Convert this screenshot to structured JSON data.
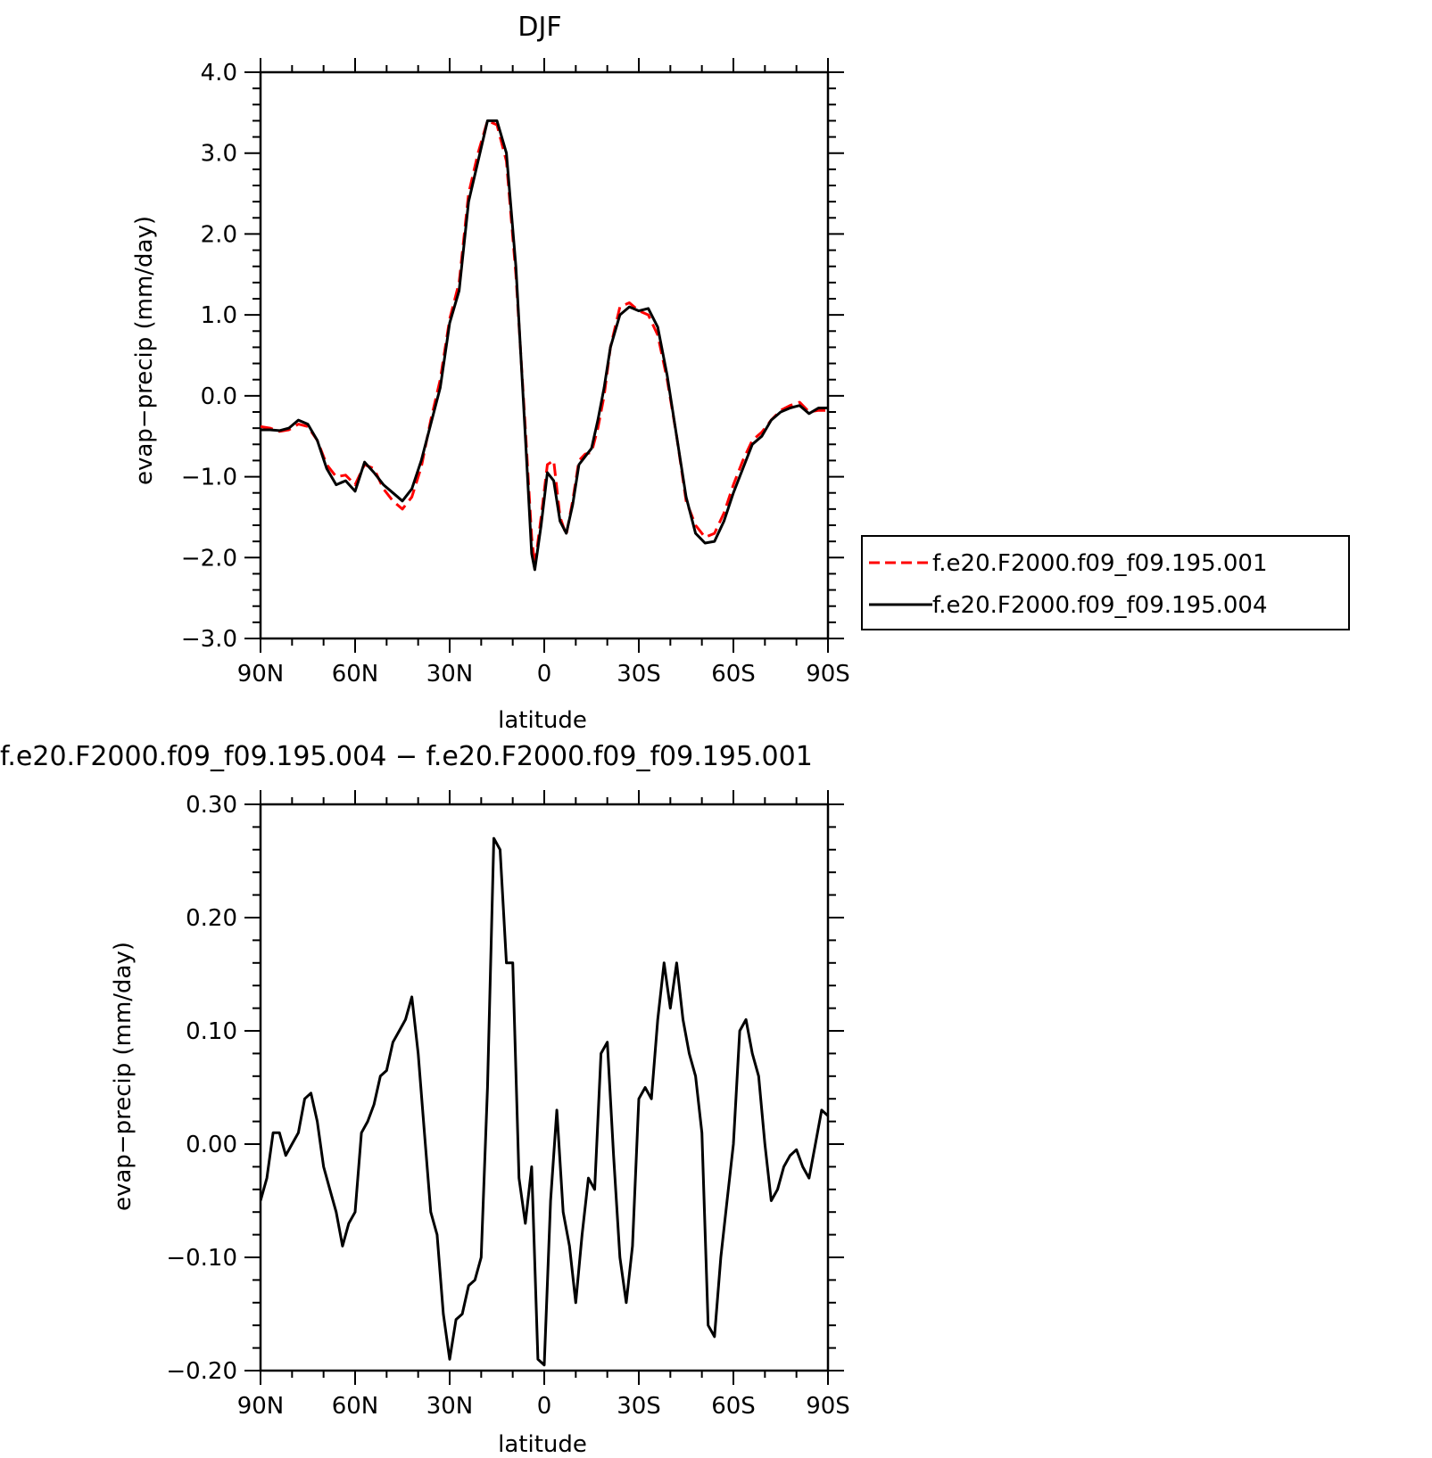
{
  "chart_data": [
    {
      "type": "line",
      "title": "DJF",
      "xlabel": "latitude",
      "ylabel": "evap−precip (mm/day)",
      "xlim": [
        90,
        -90
      ],
      "ylim": [
        -3.0,
        4.0
      ],
      "x_ticks": [
        90,
        60,
        30,
        0,
        -30,
        -60,
        -90
      ],
      "x_tick_labels": [
        "90N",
        "60N",
        "30N",
        "0",
        "30S",
        "60S",
        "90S"
      ],
      "y_ticks": [
        -3,
        -2,
        -1,
        0,
        1,
        2,
        3,
        4
      ],
      "y_tick_labels": [
        "−3.0",
        "−2.0",
        "−1.0",
        "0.0",
        "1.0",
        "2.0",
        "3.0",
        "4.0"
      ],
      "grid": false,
      "legend_position": "outside-right",
      "series": [
        {
          "name": "f.e20.F2000.f09_f09.195.001",
          "color": "#ff0000",
          "style": "dashed",
          "x": [
            90,
            87,
            84,
            81,
            78,
            75,
            72,
            69,
            66,
            63,
            60,
            57,
            54,
            51,
            48,
            45,
            42,
            39,
            36,
            33,
            30,
            27,
            24,
            21,
            18,
            15,
            12,
            9,
            6,
            4,
            3,
            1,
            -1,
            -3,
            -5,
            -7,
            -9,
            -11,
            -13,
            -15,
            -17,
            -19,
            -21,
            -24,
            -27,
            -30,
            -33,
            -36,
            -39,
            -42,
            -45,
            -48,
            -51,
            -54,
            -57,
            -60,
            -63,
            -66,
            -69,
            -72,
            -75,
            -78,
            -81,
            -84,
            -87,
            -90
          ],
          "values": [
            -0.38,
            -0.4,
            -0.44,
            -0.42,
            -0.35,
            -0.38,
            -0.55,
            -0.85,
            -1.0,
            -0.98,
            -1.1,
            -0.85,
            -0.9,
            -1.15,
            -1.3,
            -1.4,
            -1.25,
            -0.88,
            -0.3,
            0.2,
            0.95,
            1.4,
            2.5,
            3.0,
            3.4,
            3.35,
            2.9,
            1.5,
            -0.4,
            -1.75,
            -2.1,
            -1.5,
            -0.85,
            -0.8,
            -1.5,
            -1.72,
            -1.3,
            -0.8,
            -0.72,
            -0.7,
            -0.4,
            0.0,
            0.6,
            1.1,
            1.15,
            1.05,
            1.0,
            0.75,
            0.2,
            -0.5,
            -1.3,
            -1.6,
            -1.75,
            -1.7,
            -1.45,
            -1.1,
            -0.8,
            -0.55,
            -0.45,
            -0.3,
            -0.18,
            -0.12,
            -0.08,
            -0.2,
            -0.18,
            -0.18
          ]
        },
        {
          "name": "f.e20.F2000.f09_f09.195.004",
          "color": "#000000",
          "style": "solid",
          "x": [
            90,
            87,
            84,
            81,
            78,
            75,
            72,
            69,
            66,
            63,
            60,
            57,
            54,
            51,
            48,
            45,
            42,
            39,
            36,
            33,
            30,
            27,
            24,
            21,
            18,
            15,
            12,
            9,
            6,
            4,
            3,
            1,
            -1,
            -3,
            -5,
            -7,
            -9,
            -11,
            -13,
            -15,
            -17,
            -19,
            -21,
            -24,
            -27,
            -30,
            -33,
            -36,
            -39,
            -42,
            -45,
            -48,
            -51,
            -54,
            -57,
            -60,
            -63,
            -66,
            -69,
            -72,
            -75,
            -78,
            -81,
            -84,
            -87,
            -90
          ],
          "values": [
            -0.42,
            -0.42,
            -0.43,
            -0.4,
            -0.3,
            -0.35,
            -0.55,
            -0.9,
            -1.1,
            -1.05,
            -1.18,
            -0.82,
            -0.95,
            -1.1,
            -1.2,
            -1.3,
            -1.15,
            -0.8,
            -0.35,
            0.1,
            0.9,
            1.3,
            2.4,
            2.9,
            3.4,
            3.4,
            3.0,
            1.6,
            -0.5,
            -1.95,
            -2.15,
            -1.6,
            -0.95,
            -1.05,
            -1.55,
            -1.7,
            -1.35,
            -0.85,
            -0.75,
            -0.65,
            -0.3,
            0.1,
            0.6,
            1.0,
            1.1,
            1.05,
            1.08,
            0.85,
            0.25,
            -0.5,
            -1.25,
            -1.7,
            -1.82,
            -1.8,
            -1.55,
            -1.2,
            -0.9,
            -0.6,
            -0.5,
            -0.3,
            -0.2,
            -0.15,
            -0.12,
            -0.22,
            -0.15,
            -0.15
          ]
        }
      ]
    },
    {
      "type": "line",
      "title": "f.e20.F2000.f09_f09.195.004 − f.e20.F2000.f09_f09.195.001",
      "xlabel": "latitude",
      "ylabel": "evap−precip (mm/day)",
      "xlim": [
        90,
        -90
      ],
      "ylim": [
        -0.2,
        0.3
      ],
      "x_ticks": [
        90,
        60,
        30,
        0,
        -30,
        -60,
        -90
      ],
      "x_tick_labels": [
        "90N",
        "60N",
        "30N",
        "0",
        "30S",
        "60S",
        "90S"
      ],
      "y_ticks": [
        -0.2,
        -0.1,
        0.0,
        0.1,
        0.2,
        0.3
      ],
      "y_tick_labels": [
        "−0.20",
        "−0.10",
        "0.00",
        "0.10",
        "0.20",
        "0.30"
      ],
      "grid": false,
      "series": [
        {
          "color": "#000000",
          "style": "solid",
          "x": [
            90,
            88,
            86,
            84,
            82,
            80,
            78,
            76,
            74,
            72,
            70,
            68,
            66,
            64,
            62,
            60,
            58,
            56,
            54,
            52,
            50,
            48,
            46,
            44,
            42,
            40,
            38,
            36,
            34,
            32,
            30,
            28,
            26,
            24,
            22,
            20,
            18,
            16,
            14,
            12,
            10,
            8,
            6,
            4,
            2,
            0,
            -2,
            -4,
            -6,
            -8,
            -10,
            -12,
            -14,
            -16,
            -18,
            -20,
            -22,
            -24,
            -26,
            -28,
            -30,
            -32,
            -34,
            -36,
            -38,
            -40,
            -42,
            -44,
            -46,
            -48,
            -50,
            -52,
            -54,
            -56,
            -58,
            -60,
            -62,
            -64,
            -66,
            -68,
            -70,
            -72,
            -74,
            -76,
            -78,
            -80,
            -82,
            -84,
            -86,
            -88,
            -90
          ],
          "values": [
            -0.05,
            -0.03,
            0.01,
            0.01,
            -0.01,
            0.0,
            0.01,
            0.04,
            0.045,
            0.02,
            -0.02,
            -0.04,
            -0.06,
            -0.09,
            -0.07,
            -0.06,
            0.01,
            0.02,
            0.035,
            0.06,
            0.065,
            0.09,
            0.1,
            0.11,
            0.13,
            0.08,
            0.01,
            -0.06,
            -0.08,
            -0.15,
            -0.19,
            -0.155,
            -0.15,
            -0.125,
            -0.12,
            -0.1,
            0.05,
            0.27,
            0.26,
            0.16,
            0.16,
            -0.03,
            -0.07,
            -0.02,
            -0.19,
            -0.195,
            -0.05,
            0.03,
            -0.06,
            -0.09,
            -0.14,
            -0.08,
            -0.03,
            -0.04,
            0.08,
            0.09,
            -0.01,
            -0.1,
            -0.14,
            -0.09,
            0.04,
            0.05,
            0.04,
            0.11,
            0.16,
            0.12,
            0.16,
            0.11,
            0.08,
            0.06,
            0.01,
            -0.16,
            -0.17,
            -0.1,
            -0.05,
            0.0,
            0.1,
            0.11,
            0.08,
            0.06,
            0.0,
            -0.05,
            -0.04,
            -0.02,
            -0.01,
            -0.005,
            -0.02,
            -0.03,
            0.0,
            0.03,
            0.025
          ]
        }
      ]
    }
  ]
}
